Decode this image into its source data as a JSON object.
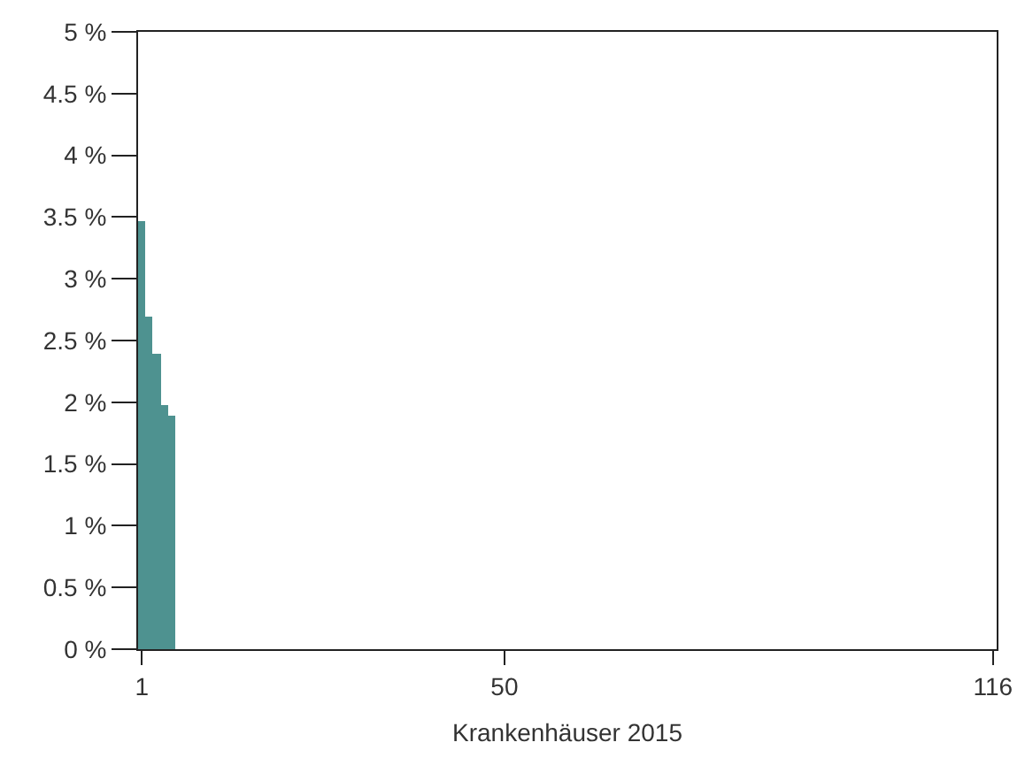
{
  "chart_data": {
    "type": "bar",
    "xlabel": "Krankenhäuser 2015",
    "x": [
      1,
      2,
      3,
      4,
      5
    ],
    "values": [
      3.47,
      2.7,
      2.39,
      1.98,
      1.89
    ],
    "color": "#4e9290",
    "xlim": [
      0.5,
      116.5
    ],
    "xticks": [
      1,
      50,
      116
    ],
    "ylim": [
      0,
      5
    ],
    "yticks": [
      {
        "value": 0,
        "label": "0 %"
      },
      {
        "value": 0.5,
        "label": "0.5 %"
      },
      {
        "value": 1,
        "label": "1 %"
      },
      {
        "value": 1.5,
        "label": "1.5 %"
      },
      {
        "value": 2,
        "label": "2 %"
      },
      {
        "value": 2.5,
        "label": "2.5 %"
      },
      {
        "value": 3,
        "label": "3 %"
      },
      {
        "value": 3.5,
        "label": "3.5 %"
      },
      {
        "value": 4,
        "label": "4 %"
      },
      {
        "value": 4.5,
        "label": "4.5 %"
      },
      {
        "value": 5,
        "label": "5 %"
      }
    ],
    "grid": false,
    "legend": false
  }
}
